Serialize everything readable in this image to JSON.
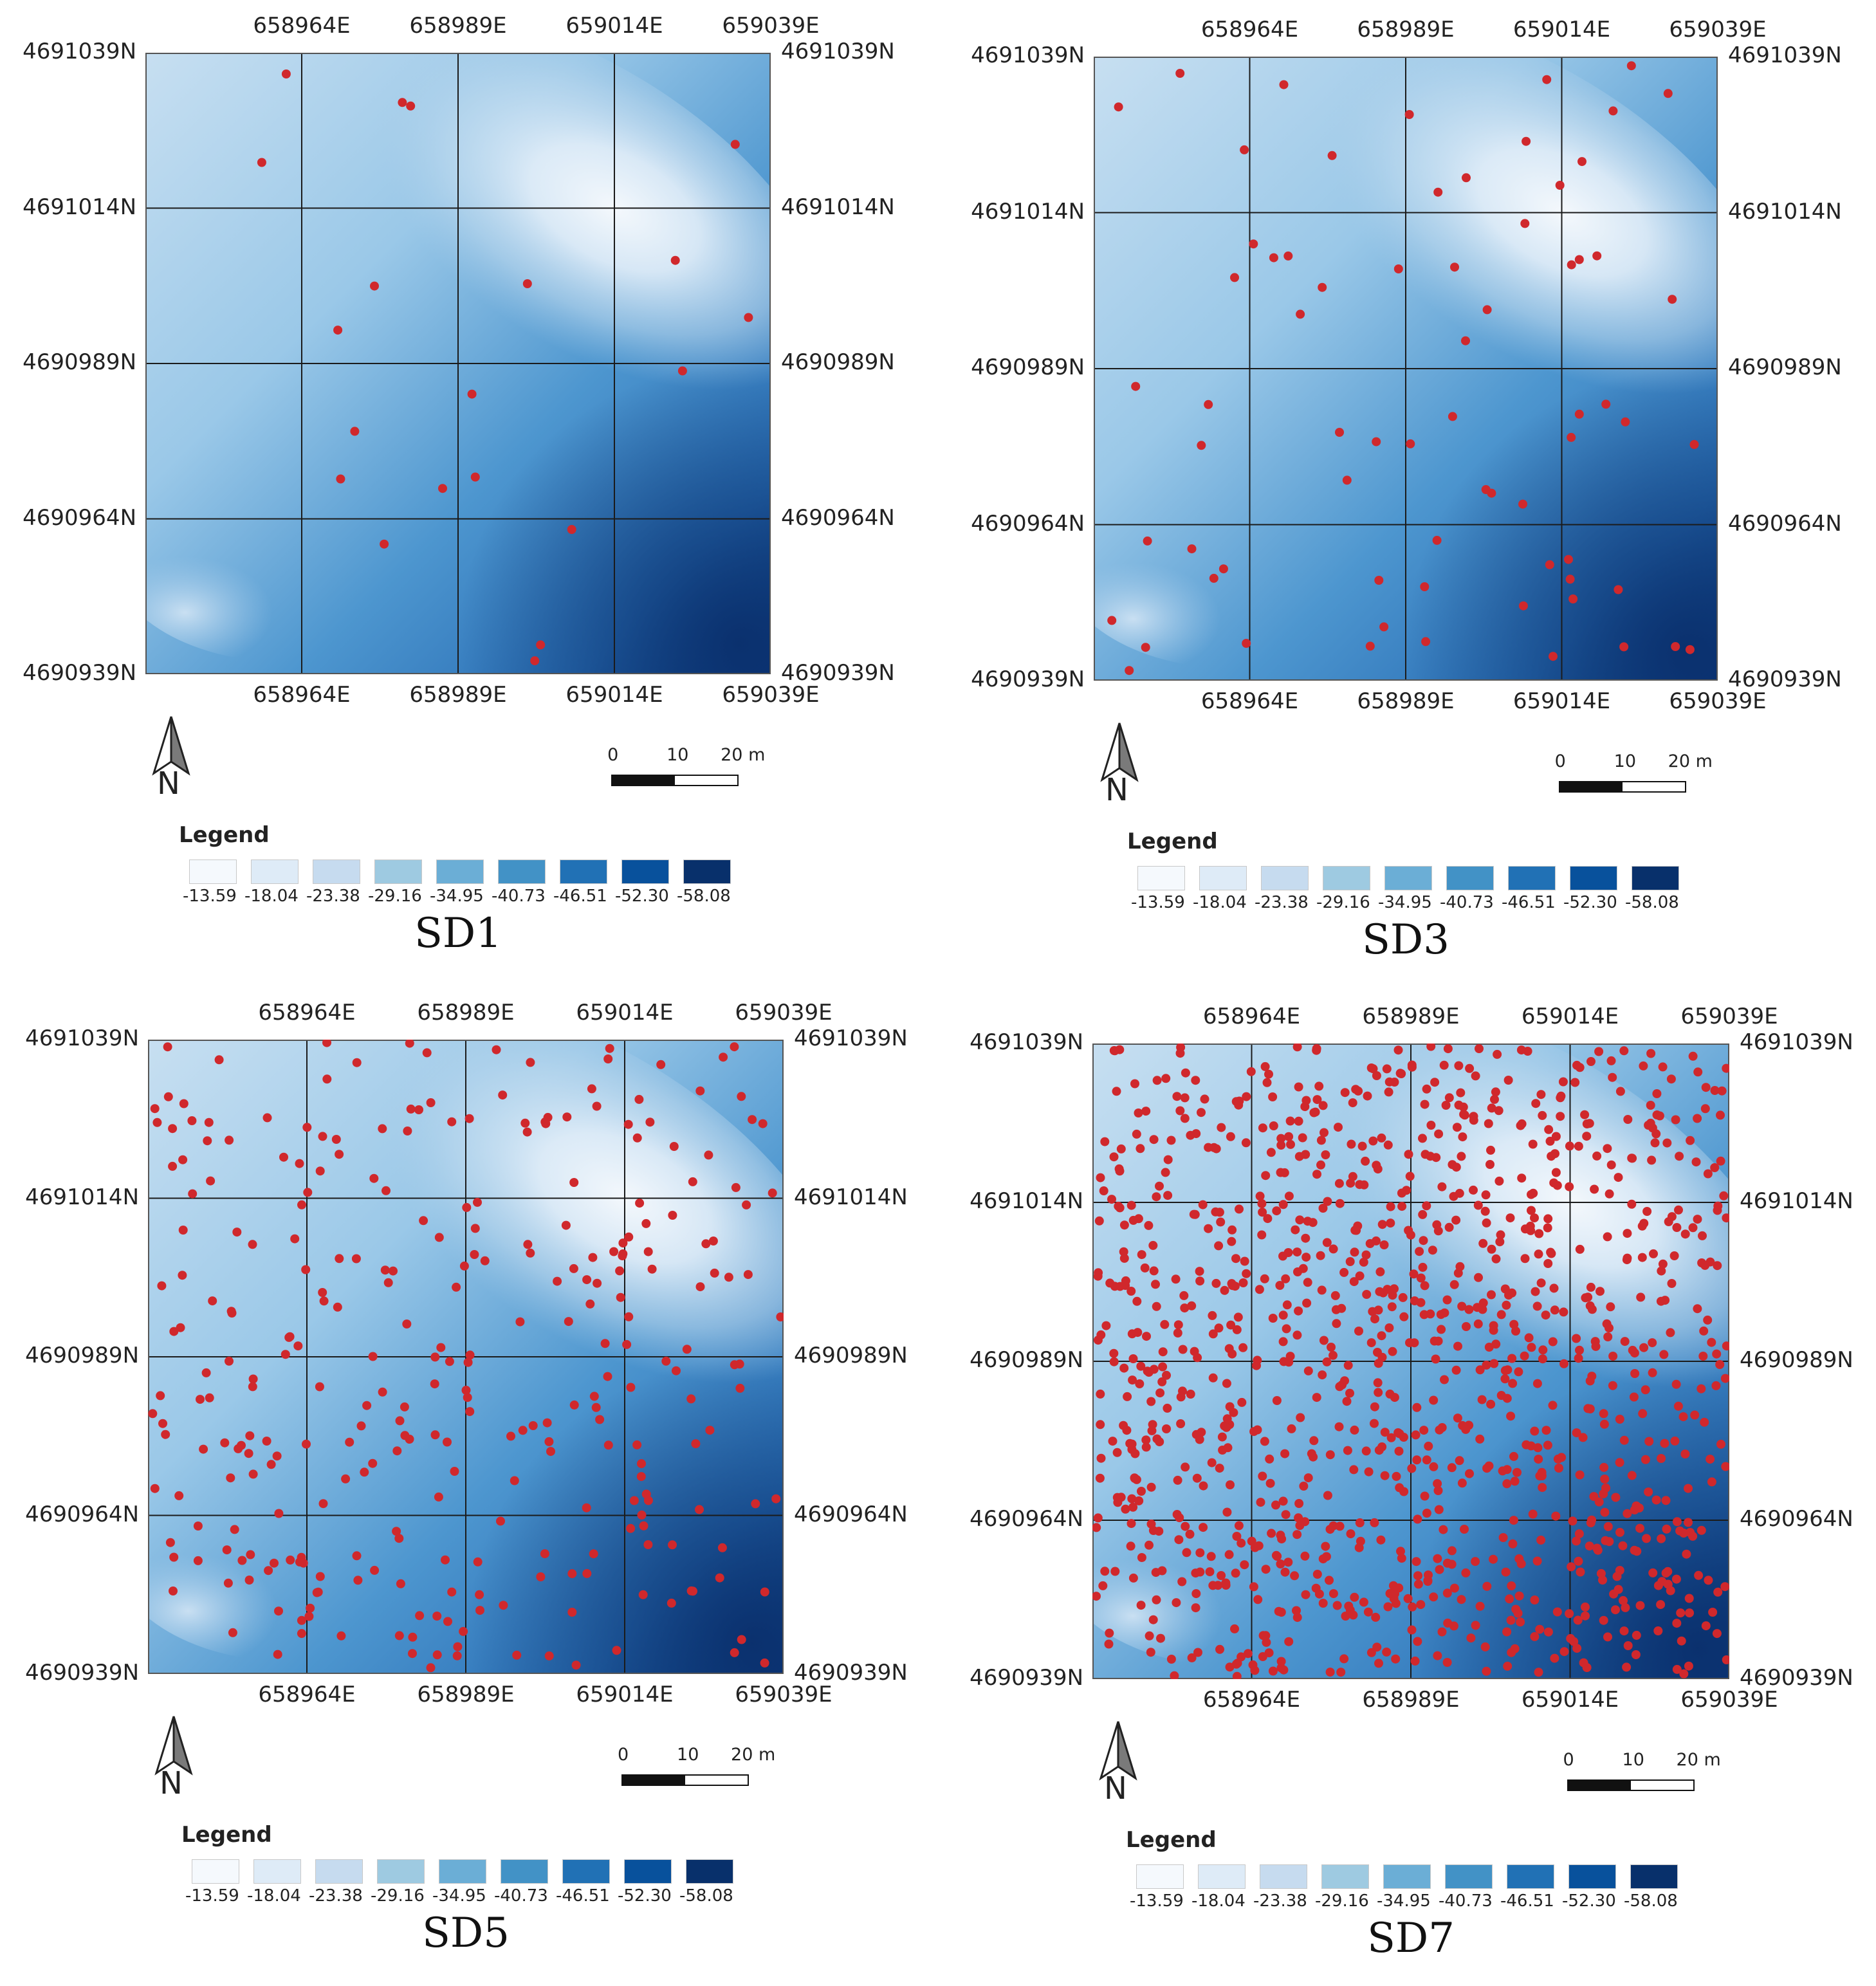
{
  "figure": {
    "coordinate_labels": {
      "eastings": [
        "658964E",
        "658989E",
        "659014E",
        "659039E"
      ],
      "northings": [
        "4691039N",
        "4691014N",
        "4690989N",
        "4690964N",
        "4690939N"
      ]
    },
    "north_arrow": {
      "icon": "north-arrow-icon",
      "letter": "N"
    },
    "scale": {
      "labels": [
        "0",
        "10",
        "20 m"
      ]
    },
    "legend": {
      "title": "Legend",
      "classes": [
        {
          "label": "-13.59",
          "color": "#f5f9fd"
        },
        {
          "label": "-18.04",
          "color": "#deebf7"
        },
        {
          "label": "-23.38",
          "color": "#c6dbef"
        },
        {
          "label": "-29.16",
          "color": "#9ecae1"
        },
        {
          "label": "-34.95",
          "color": "#6baed6"
        },
        {
          "label": "-40.73",
          "color": "#4292c6"
        },
        {
          "label": "-46.51",
          "color": "#2171b5"
        },
        {
          "label": "-52.30",
          "color": "#08519c"
        },
        {
          "label": "-58.08",
          "color": "#08306b"
        }
      ]
    },
    "point_color": "#d0282c",
    "panels": [
      {
        "id": "sd1",
        "caption": "SD1",
        "approx_sample_points": 20
      },
      {
        "id": "sd3",
        "caption": "SD3",
        "approx_sample_points": 70
      },
      {
        "id": "sd5",
        "caption": "SD5",
        "approx_sample_points": 300
      },
      {
        "id": "sd7",
        "caption": "SD7",
        "approx_sample_points": 1100
      }
    ]
  }
}
